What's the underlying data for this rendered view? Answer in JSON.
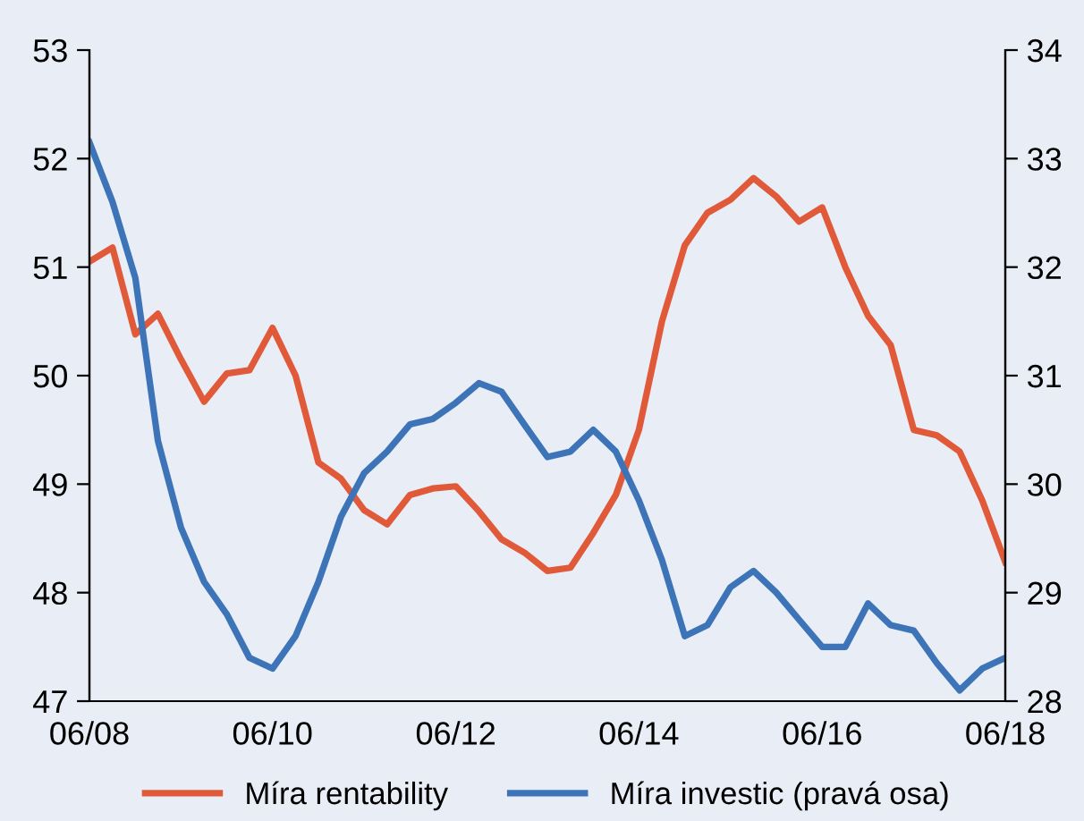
{
  "chart_data": {
    "type": "line",
    "x": [
      "2008-06",
      "2008-09",
      "2008-12",
      "2009-03",
      "2009-06",
      "2009-09",
      "2009-12",
      "2010-03",
      "2010-06",
      "2010-09",
      "2010-12",
      "2011-03",
      "2011-06",
      "2011-09",
      "2011-12",
      "2012-03",
      "2012-06",
      "2012-09",
      "2012-12",
      "2013-03",
      "2013-06",
      "2013-09",
      "2013-12",
      "2014-03",
      "2014-06",
      "2014-09",
      "2014-12",
      "2015-03",
      "2015-06",
      "2015-09",
      "2015-12",
      "2016-03",
      "2016-06",
      "2016-09",
      "2016-12",
      "2017-03",
      "2017-06",
      "2017-09",
      "2017-12",
      "2018-03",
      "2018-06"
    ],
    "series": [
      {
        "name": "Míra rentability",
        "color": "#e05a3a",
        "values": [
          51.05,
          51.18,
          50.38,
          50.57,
          50.15,
          49.76,
          50.02,
          50.05,
          50.44,
          50.0,
          49.2,
          49.05,
          48.76,
          48.63,
          48.9,
          48.96,
          48.98,
          48.75,
          48.49,
          48.37,
          48.2,
          48.23,
          48.55,
          48.9,
          49.5,
          50.5,
          51.2,
          51.5,
          51.62,
          51.82,
          51.65,
          51.42,
          51.55,
          51.0,
          50.55,
          50.28,
          49.5,
          49.45,
          49.3,
          48.85,
          48.28
        ]
      },
      {
        "name": "Míra investic (pravá osa)",
        "color": "#3d74b8",
        "axis": "y2",
        "values": [
          33.15,
          32.6,
          31.9,
          30.4,
          29.6,
          29.1,
          28.8,
          28.4,
          28.3,
          28.6,
          29.1,
          29.7,
          30.1,
          30.3,
          30.55,
          30.6,
          30.75,
          30.93,
          30.85,
          30.55,
          30.25,
          30.3,
          30.5,
          30.3,
          29.85,
          29.3,
          28.6,
          28.7,
          29.05,
          29.2,
          29.0,
          28.75,
          28.5,
          28.5,
          28.9,
          28.7,
          28.65,
          28.35,
          28.1,
          28.3,
          28.4
        ]
      }
    ],
    "xlim": [
      "2008-06",
      "2018-06"
    ],
    "xticks": [
      {
        "value": "2008-06",
        "label": "06/08"
      },
      {
        "value": "2010-06",
        "label": "06/10"
      },
      {
        "value": "2012-06",
        "label": "06/12"
      },
      {
        "value": "2014-06",
        "label": "06/14"
      },
      {
        "value": "2016-06",
        "label": "06/16"
      },
      {
        "value": "2018-06",
        "label": "06/18"
      }
    ],
    "ylim": [
      47,
      53
    ],
    "yticks": [
      47,
      48,
      49,
      50,
      51,
      52,
      53
    ],
    "y2lim": [
      28,
      34
    ],
    "y2ticks": [
      28,
      29,
      30,
      31,
      32,
      33,
      34
    ],
    "grid": false,
    "legend": "bottom",
    "marker": "none",
    "line_style": "solid"
  }
}
